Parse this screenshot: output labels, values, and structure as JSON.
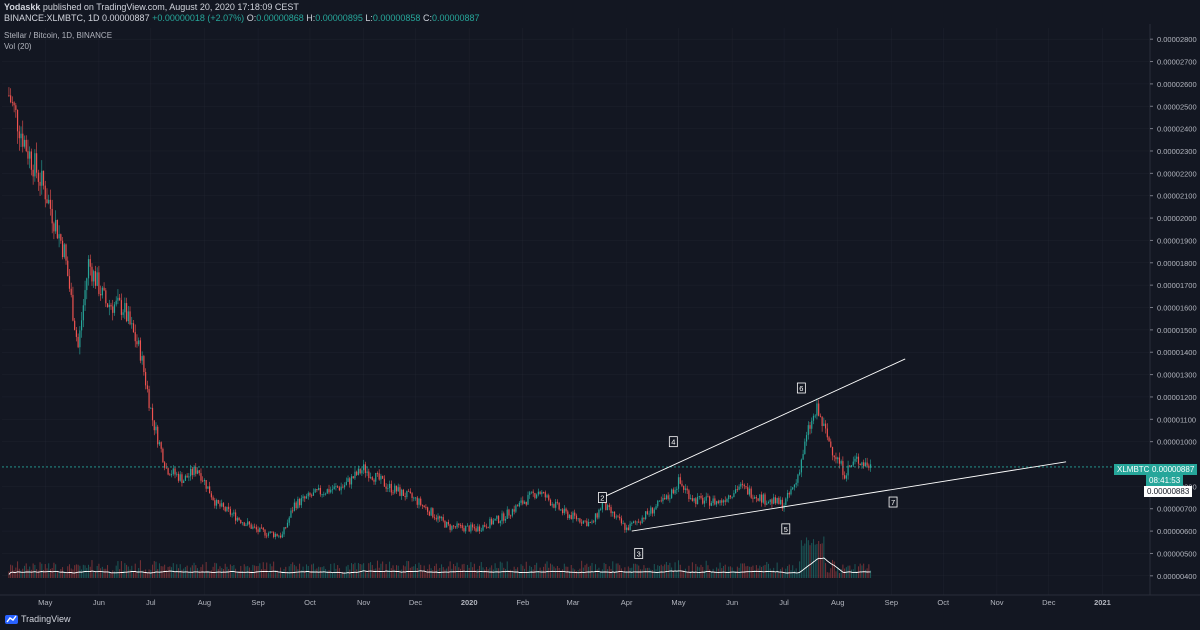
{
  "header": {
    "author": "Yodaskk",
    "published_text": "published on TradingView.com, August 20, 2020 17:18:09 CEST",
    "symbol_line": "BINANCE:XLMBTC, 1D 0.00000887",
    "change": "+0.00000018 (+2.07%)",
    "ohlc": {
      "o_label": "O:",
      "o": "0.00000868",
      "h_label": "H:",
      "h": "0.00000895",
      "l_label": "L:",
      "l": "0.00000858",
      "c_label": "C:",
      "c": "0.00000887"
    }
  },
  "legend": {
    "title": "Stellar / Bitcoin, 1D, BINANCE",
    "volume": "Vol (20)"
  },
  "badges": {
    "symbol": "XLMBTC",
    "last": "0.00000887",
    "timer": "08:41:53",
    "cursor": "0.00000883"
  },
  "footer": {
    "brand": "TradingView"
  },
  "colors": {
    "background": "#131722",
    "up": "#26a69a",
    "down": "#ef5350",
    "line": "#ffffff",
    "grid": "#2a2e39"
  },
  "chart_data": {
    "type": "candlestick",
    "title": "Stellar / Bitcoin, 1D, BINANCE",
    "ylim": [
      3.5e-06,
      2.9e-06
    ],
    "y_range": [
      3.5e-06,
      2.9e-06
    ],
    "y_ticks": [
      "0.00002800",
      "0.00002700",
      "0.00002600",
      "0.00002500",
      "0.00002400",
      "0.00002300",
      "0.00002200",
      "0.00002100",
      "0.00002000",
      "0.00001900",
      "0.00001800",
      "0.00001700",
      "0.00001600",
      "0.00001500",
      "0.00001400",
      "0.00001300",
      "0.00001200",
      "0.00001100",
      "0.00001000",
      "0.00000800",
      "0.00000700",
      "0.00000600",
      "0.00000500",
      "0.00000400"
    ],
    "y_tick_values": [
      2.8e-05,
      2.7e-05,
      2.6e-05,
      2.5e-05,
      2.4e-05,
      2.3e-05,
      2.2e-05,
      2.1e-05,
      2e-05,
      1.9e-05,
      1.8e-05,
      1.7e-05,
      1.6e-05,
      1.5e-05,
      1.4e-05,
      1.3e-05,
      1.2e-05,
      1.1e-05,
      1e-05,
      8e-06,
      7e-06,
      6e-06,
      5e-06,
      4e-06
    ],
    "x_ticks": [
      "May",
      "Jun",
      "Jul",
      "Aug",
      "Sep",
      "Oct",
      "Nov",
      "Dec",
      "2020",
      "Feb",
      "Mar",
      "Apr",
      "May",
      "Jun",
      "Jul",
      "Aug",
      "Sep",
      "Oct",
      "Nov",
      "Dec",
      "2021"
    ],
    "x_tick_dates": [
      "2019-05-01",
      "2019-06-01",
      "2019-07-01",
      "2019-08-01",
      "2019-09-01",
      "2019-10-01",
      "2019-11-01",
      "2019-12-01",
      "2020-01-01",
      "2020-02-01",
      "2020-03-01",
      "2020-04-01",
      "2020-05-01",
      "2020-06-01",
      "2020-07-01",
      "2020-08-01",
      "2020-09-01",
      "2020-10-01",
      "2020-11-01",
      "2020-12-01",
      "2021-01-01"
    ],
    "price_path": [
      [
        "2019-04-10",
        2.55e-05
      ],
      [
        "2019-04-20",
        2.32e-05
      ],
      [
        "2019-05-01",
        2.12e-05
      ],
      [
        "2019-05-12",
        1.85e-05
      ],
      [
        "2019-05-20",
        1.42e-05
      ],
      [
        "2019-05-26",
        1.8e-05
      ],
      [
        "2019-06-05",
        1.62e-05
      ],
      [
        "2019-06-15",
        1.6e-05
      ],
      [
        "2019-06-25",
        1.4e-05
      ],
      [
        "2019-07-02",
        1.1e-05
      ],
      [
        "2019-07-10",
        8.8e-06
      ],
      [
        "2019-07-20",
        8.3e-06
      ],
      [
        "2019-07-28",
        8.8e-06
      ],
      [
        "2019-08-08",
        7.2e-06
      ],
      [
        "2019-08-20",
        6.6e-06
      ],
      [
        "2019-09-01",
        6e-06
      ],
      [
        "2019-09-15",
        5.8e-06
      ],
      [
        "2019-09-22",
        7.2e-06
      ],
      [
        "2019-10-05",
        7.7e-06
      ],
      [
        "2019-10-20",
        8e-06
      ],
      [
        "2019-11-01",
        8.8e-06
      ],
      [
        "2019-11-15",
        8e-06
      ],
      [
        "2019-12-01",
        7.4e-06
      ],
      [
        "2019-12-20",
        6.2e-06
      ],
      [
        "2020-01-05",
        6.1e-06
      ],
      [
        "2020-01-20",
        6.6e-06
      ],
      [
        "2020-02-10",
        7.8e-06
      ],
      [
        "2020-02-25",
        6.8e-06
      ],
      [
        "2020-03-12",
        6.3e-06
      ],
      [
        "2020-03-18",
        7.2e-06
      ],
      [
        "2020-04-01",
        6.1e-06
      ],
      [
        "2020-04-10",
        6.6e-06
      ],
      [
        "2020-04-25",
        7.5e-06
      ],
      [
        "2020-05-01",
        8.2e-06
      ],
      [
        "2020-05-10",
        7.4e-06
      ],
      [
        "2020-05-25",
        7.3e-06
      ],
      [
        "2020-06-05",
        8e-06
      ],
      [
        "2020-06-20",
        7.4e-06
      ],
      [
        "2020-07-01",
        7.2e-06
      ],
      [
        "2020-07-08",
        8.2e-06
      ],
      [
        "2020-07-15",
        1.05e-05
      ],
      [
        "2020-07-20",
        1.14e-05
      ],
      [
        "2020-07-28",
        9.8e-06
      ],
      [
        "2020-08-05",
        8.6e-06
      ],
      [
        "2020-08-12",
        9.2e-06
      ],
      [
        "2020-08-20",
        8.9e-06
      ]
    ],
    "last_price": 8.87e-06,
    "volume_label": "Vol (20)",
    "annotations": [
      {
        "label": "2",
        "date": "2020-03-18",
        "price": 7.5e-06
      },
      {
        "label": "3",
        "date": "2020-04-08",
        "price": 5e-06
      },
      {
        "label": "4",
        "date": "2020-04-28",
        "price": 1e-05
      },
      {
        "label": "5",
        "date": "2020-07-02",
        "price": 6.1e-06
      },
      {
        "label": "6",
        "date": "2020-07-11",
        "price": 1.24e-05
      },
      {
        "label": "7",
        "date": "2020-09-02",
        "price": 7.3e-06
      }
    ],
    "trendlines": [
      {
        "from": [
          "2020-03-18",
          7.5e-06
        ],
        "to": [
          "2020-09-09",
          1.37e-05
        ]
      },
      {
        "from": [
          "2020-04-04",
          6e-06
        ],
        "to": [
          "2020-12-11",
          9.1e-06
        ]
      }
    ],
    "grid": true
  }
}
